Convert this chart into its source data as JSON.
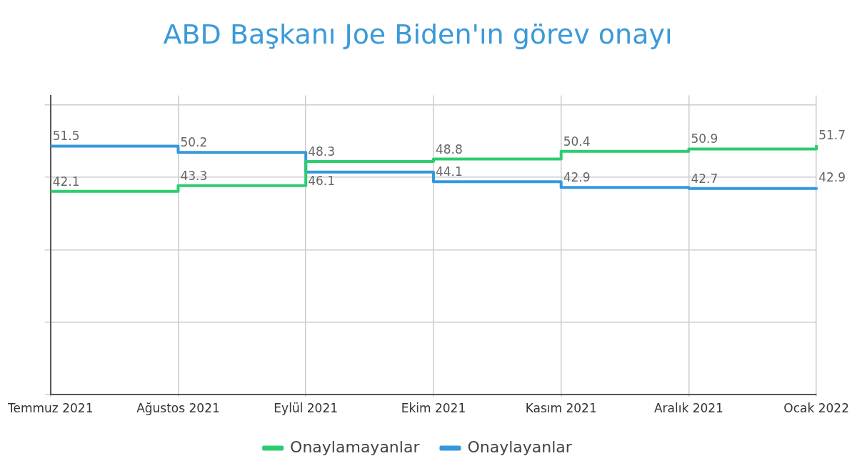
{
  "chart_data": {
    "type": "step",
    "title": "ABD Başkanı Joe Biden'ın görev onayı",
    "categories": [
      "Temmuz 2021",
      "Ağustos 2021",
      "Eylül 2021",
      "Ekim 2021",
      "Kasım 2021",
      "Aralık 2021",
      "Ocak 2022"
    ],
    "series": [
      {
        "name": "Onaylamayanlar",
        "color": "#2ecc71",
        "values": [
          42.1,
          43.3,
          48.3,
          48.8,
          50.4,
          50.9,
          51.7
        ]
      },
      {
        "name": "Onaylayanlar",
        "color": "#3498db",
        "values": [
          51.5,
          50.2,
          46.1,
          44.1,
          42.9,
          42.7,
          42.9
        ]
      }
    ],
    "ylim": [
      0,
      62
    ],
    "yticks": [
      {
        "value": 0,
        "label": null
      },
      {
        "value": 15,
        "label": null
      },
      {
        "value": 30,
        "label": null
      },
      {
        "value": 45,
        "label": null
      },
      {
        "value": 60,
        "label": null
      }
    ],
    "tick_labels": "x",
    "grid": true,
    "legend": "bottom",
    "data_labels": true
  }
}
